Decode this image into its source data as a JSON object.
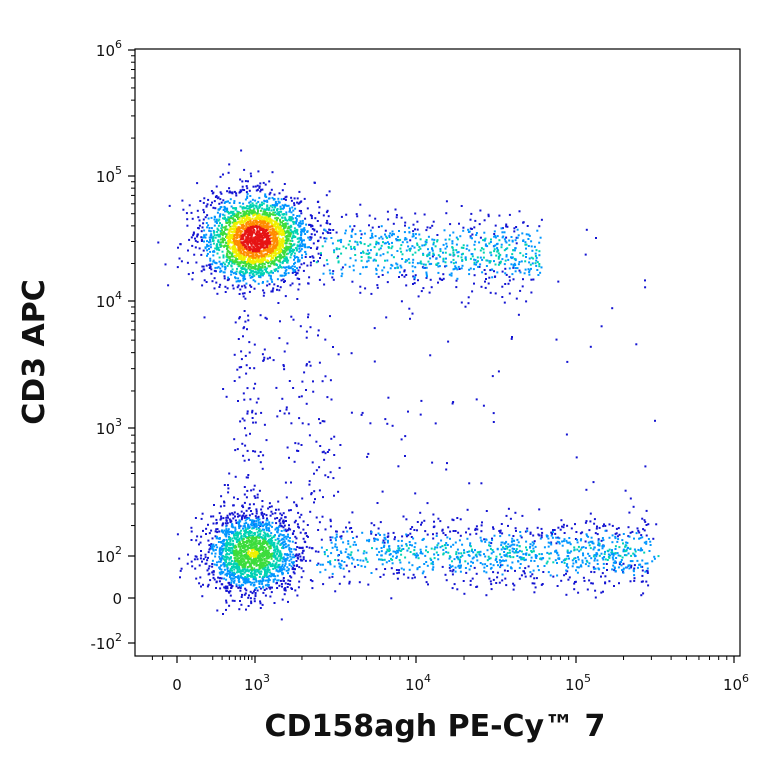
{
  "chart_data": {
    "type": "scatter",
    "subtype": "flow-cytometry density dot plot (biexponential axes)",
    "xlabel": "CD158agh PE-Cy™ 7",
    "ylabel": "CD3 APC",
    "x_scale": "biexponential",
    "y_scale": "biexponential",
    "xlim": [
      -200,
      1000000
    ],
    "ylim": [
      -200,
      1000000
    ],
    "x_ticks": [
      {
        "value": 0,
        "base": "0",
        "exp": ""
      },
      {
        "value": 1000,
        "base": "10",
        "exp": "3"
      },
      {
        "value": 10000,
        "base": "10",
        "exp": "4"
      },
      {
        "value": 100000,
        "base": "10",
        "exp": "5"
      },
      {
        "value": 1000000,
        "base": "10",
        "exp": "6"
      }
    ],
    "y_ticks": [
      {
        "value": -100,
        "base": "-10",
        "exp": "2"
      },
      {
        "value": 0,
        "base": "0",
        "exp": ""
      },
      {
        "value": 100,
        "base": "10",
        "exp": "2"
      },
      {
        "value": 1000,
        "base": "10",
        "exp": "3"
      },
      {
        "value": 10000,
        "base": "10",
        "exp": "4"
      },
      {
        "value": 100000,
        "base": "10",
        "exp": "5"
      },
      {
        "value": 1000000,
        "base": "10",
        "exp": "6"
      }
    ],
    "color_scale": [
      "#1414d2",
      "#0096ff",
      "#00d2b4",
      "#3cdc3c",
      "#f0f000",
      "#ff8c00",
      "#e61414"
    ],
    "populations": [
      {
        "x_center": 1000,
        "y_center": 32000,
        "density": "high"
      },
      {
        "x_center": 900,
        "y_center": 110,
        "density": "medium"
      },
      {
        "x_from": 3000,
        "x_to": 300000,
        "y_center": 110,
        "density": "low"
      },
      {
        "x_from": 3000,
        "x_to": 60000,
        "y_center": 25000,
        "density": "low"
      },
      {
        "x_center": 1200,
        "y_from": 150,
        "y_to": 8000,
        "density": "sparse"
      }
    ]
  }
}
